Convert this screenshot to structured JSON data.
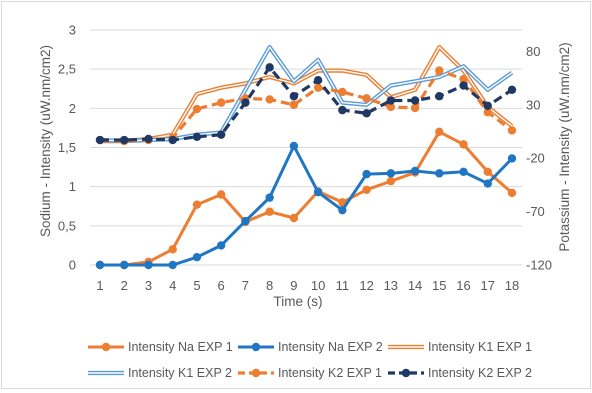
{
  "chart_data": {
    "type": "line",
    "title": "",
    "xlabel": "Time (s)",
    "ylabel_left": "Sodium - Intensity (uW.nm/cm2)",
    "ylabel_right": "Potassium - Intensity (uW.nm/cm2)",
    "x": [
      1,
      2,
      3,
      4,
      5,
      6,
      7,
      8,
      9,
      10,
      11,
      12,
      13,
      14,
      15,
      16,
      17,
      18
    ],
    "x_tick_labels": [
      "1",
      "2",
      "3",
      "4",
      "5",
      "6",
      "7",
      "8",
      "9",
      "10",
      "11",
      "12",
      "13",
      "14",
      "15",
      "16",
      "17",
      "18"
    ],
    "ylim_left": [
      0,
      3
    ],
    "ylim_right": [
      -120,
      100
    ],
    "y_left_ticks": [
      "0",
      "0,5",
      "1",
      "1,5",
      "2",
      "2,5",
      "3"
    ],
    "y_left_tick_values": [
      0,
      0.5,
      1,
      1.5,
      2,
      2.5,
      3
    ],
    "y_right_ticks": [
      "-120",
      "-70",
      "-20",
      "30",
      "80"
    ],
    "y_right_tick_values": [
      -120,
      -70,
      -20,
      30,
      80
    ],
    "grid": true,
    "legend_position": "bottom",
    "series": [
      {
        "name": "Intensity Na EXP 1",
        "axis": "left",
        "style": "solid-dot",
        "color": "#ED7D31",
        "values": [
          0,
          0,
          0.04,
          0.2,
          0.77,
          0.9,
          0.55,
          0.68,
          0.6,
          0.94,
          0.8,
          0.96,
          1.07,
          1.18,
          1.7,
          1.54,
          1.19,
          0.92
        ]
      },
      {
        "name": "Intensity Na EXP 2",
        "axis": "left",
        "style": "solid-dot",
        "color": "#1F77C4",
        "values": [
          0,
          0,
          0,
          0,
          0.1,
          0.25,
          0.56,
          0.86,
          1.52,
          0.93,
          0.7,
          1.16,
          1.17,
          1.2,
          1.17,
          1.19,
          1.04,
          1.36
        ]
      },
      {
        "name": "Intensity K1 EXP 1",
        "axis": "right",
        "style": "double",
        "color": "#ED7D31",
        "values": [
          -4,
          -4,
          -2,
          2,
          40,
          46,
          50,
          56,
          50,
          62,
          62,
          58,
          37,
          44,
          84,
          62,
          28,
          10
        ]
      },
      {
        "name": "Intensity K1 EXP 2",
        "axis": "right",
        "style": "double",
        "color": "#5B9BD5",
        "values": [
          -3,
          -4,
          -3,
          -2,
          2,
          4,
          44,
          84,
          52,
          72,
          32,
          30,
          48,
          52,
          56,
          66,
          44,
          60
        ]
      },
      {
        "name": "Intensity K2 EXP 1",
        "axis": "right",
        "style": "dashed-dot",
        "color": "#ED7D31",
        "values": [
          -3,
          -4,
          -3,
          -1,
          26,
          32,
          36,
          35,
          30,
          46,
          42,
          36,
          28,
          27,
          62,
          54,
          23,
          6
        ]
      },
      {
        "name": "Intensity K2 EXP 2",
        "axis": "right",
        "style": "dashed-dot",
        "color": "#1F3864",
        "values": [
          -3,
          -3,
          -2,
          -3,
          0,
          2,
          32,
          65,
          38,
          53,
          25,
          22,
          34,
          34,
          38,
          48,
          29,
          44
        ]
      }
    ]
  }
}
